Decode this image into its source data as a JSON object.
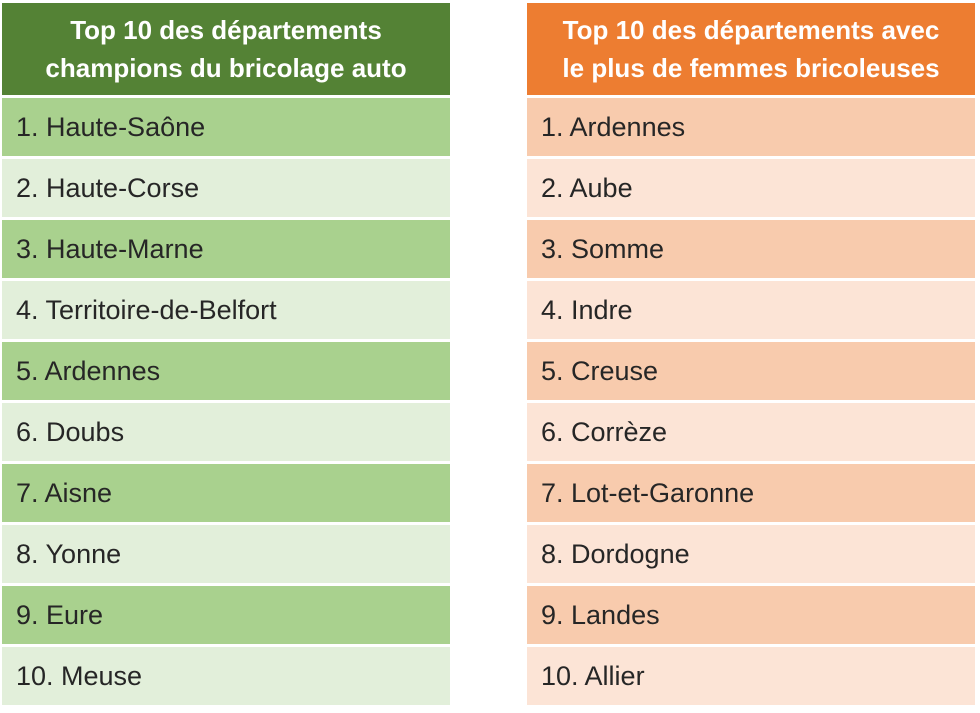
{
  "left_table": {
    "title_line1": "Top 10 des départements",
    "title_line2": "champions du bricolage auto",
    "header_color": "#548235",
    "row_colors": [
      "#A9D18E",
      "#E2EFDA"
    ],
    "items": [
      "1. Haute-Saône",
      "2. Haute-Corse",
      "3. Haute-Marne",
      "4. Territoire-de-Belfort",
      "5. Ardennes",
      "6. Doubs",
      "7. Aisne",
      "8. Yonne",
      "9. Eure",
      "10. Meuse"
    ]
  },
  "right_table": {
    "title_line1": "Top 10 des départements avec",
    "title_line2": "le plus de femmes bricoleuses",
    "header_color": "#ED7D31",
    "row_colors": [
      "#F8CBAD",
      "#FCE4D6"
    ],
    "items": [
      "1. Ardennes",
      "2. Aube",
      "3. Somme",
      "4. Indre",
      "5. Creuse",
      "6. Corrèze",
      "7. Lot-et-Garonne",
      "8. Dordogne",
      "9. Landes",
      "10. Allier"
    ]
  }
}
